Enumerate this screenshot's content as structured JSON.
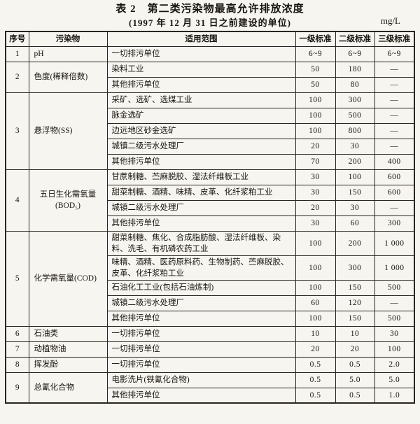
{
  "page": {
    "title": "表 2　第二类污染物最高允许排放浓度",
    "subtitle": "(1997 年 12 月 31 日之前建设的单位)",
    "unit_label": "mg/L"
  },
  "table": {
    "headers": [
      "序号",
      "污染物",
      "适用范围",
      "一级标准",
      "二级标准",
      "三级标准"
    ],
    "groups": [
      {
        "no": "1",
        "pollutant": "pH",
        "entries": [
          {
            "scope": "一切排污单位",
            "values": [
              "6~9",
              "6~9",
              "6~9"
            ]
          }
        ]
      },
      {
        "no": "2",
        "pollutant": "色度(稀释倍数)",
        "entries": [
          {
            "scope": "染料工业",
            "values": [
              "50",
              "180",
              "—"
            ]
          },
          {
            "scope": "其他排污单位",
            "values": [
              "50",
              "80",
              "—"
            ]
          }
        ]
      },
      {
        "no": "3",
        "pollutant": "悬浮物(SS)",
        "entries": [
          {
            "scope": "采矿、选矿、选煤工业",
            "values": [
              "100",
              "300",
              "—"
            ]
          },
          {
            "scope": "脉金选矿",
            "values": [
              "100",
              "500",
              "—"
            ]
          },
          {
            "scope": "边远地区砂金选矿",
            "values": [
              "100",
              "800",
              "—"
            ]
          },
          {
            "scope": "城镇二级污水处理厂",
            "values": [
              "20",
              "30",
              "—"
            ]
          },
          {
            "scope": "其他排污单位",
            "values": [
              "70",
              "200",
              "400"
            ]
          }
        ]
      },
      {
        "no": "4",
        "pollutant": "五日生化需氧量\n(BOD₅)",
        "entries": [
          {
            "scope": "甘蔗制糖、苎麻脱胶、湿法纤维板工业",
            "values": [
              "30",
              "100",
              "600"
            ]
          },
          {
            "scope": "甜菜制糖、酒精、味精、皮革、化纤浆粕工业",
            "values": [
              "30",
              "150",
              "600"
            ]
          },
          {
            "scope": "城镇二级污水处理厂",
            "values": [
              "20",
              "30",
              "—"
            ]
          },
          {
            "scope": "其他排污单位",
            "values": [
              "30",
              "60",
              "300"
            ]
          }
        ]
      },
      {
        "no": "5",
        "pollutant": "化学需氧量(COD)",
        "entries": [
          {
            "scope": "甜菜制糖、焦化、合成脂肪酸、湿法纤维板、染料、洗毛、有机磷农药工业",
            "values": [
              "100",
              "200",
              "1 000"
            ]
          },
          {
            "scope": "味精、酒精、医药原料药、生物制药、苎麻脱胶、皮革、化纤浆粕工业",
            "values": [
              "100",
              "300",
              "1 000"
            ]
          },
          {
            "scope": "石油化工工业(包括石油炼制)",
            "values": [
              "100",
              "150",
              "500"
            ]
          },
          {
            "scope": "城镇二级污水处理厂",
            "values": [
              "60",
              "120",
              "—"
            ]
          },
          {
            "scope": "其他排污单位",
            "values": [
              "100",
              "150",
              "500"
            ]
          }
        ]
      },
      {
        "no": "6",
        "pollutant": "石油类",
        "entries": [
          {
            "scope": "一切排污单位",
            "values": [
              "10",
              "10",
              "30"
            ]
          }
        ]
      },
      {
        "no": "7",
        "pollutant": "动植物油",
        "entries": [
          {
            "scope": "一切排污单位",
            "values": [
              "20",
              "20",
              "100"
            ]
          }
        ]
      },
      {
        "no": "8",
        "pollutant": "挥发酚",
        "entries": [
          {
            "scope": "一切排污单位",
            "values": [
              "0.5",
              "0.5",
              "2.0"
            ]
          }
        ]
      },
      {
        "no": "9",
        "pollutant": "总氰化合物",
        "entries": [
          {
            "scope": "电影洗片(铁氰化合物)",
            "values": [
              "0.5",
              "5.0",
              "5.0"
            ]
          },
          {
            "scope": "其他排污单位",
            "values": [
              "0.5",
              "0.5",
              "1.0"
            ]
          }
        ]
      }
    ]
  }
}
